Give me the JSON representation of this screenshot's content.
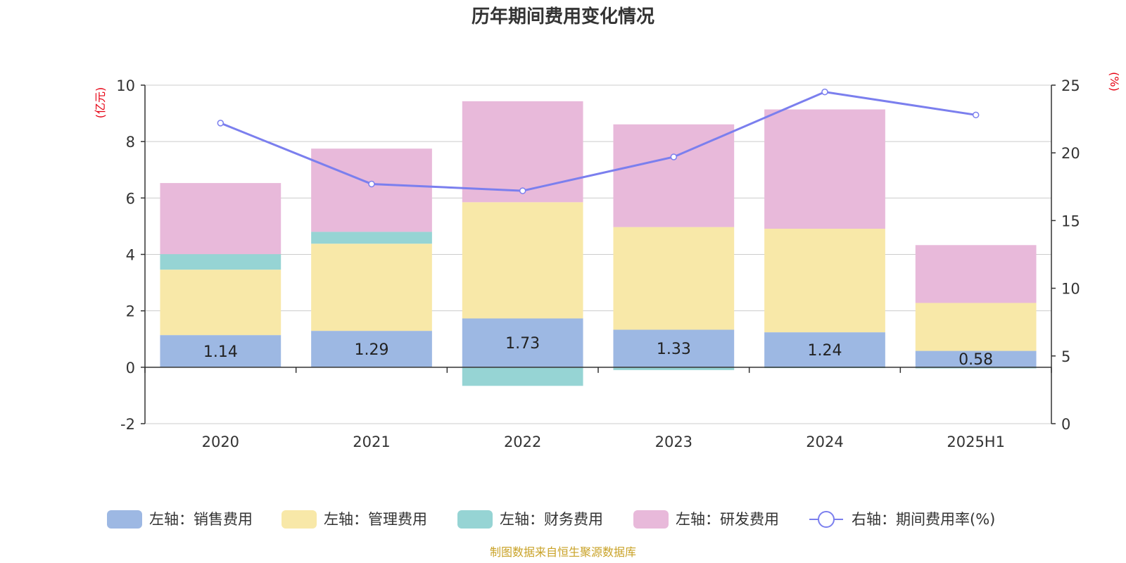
{
  "chart_data": {
    "type": "bar",
    "stacked": true,
    "title": "历年期间费用变化情况",
    "categories": [
      "2020",
      "2021",
      "2022",
      "2023",
      "2024",
      "2025H1"
    ],
    "left_axis": {
      "unit": "(亿元)",
      "ylim": [
        -2,
        10
      ],
      "ticks": [
        -2,
        0,
        2,
        4,
        6,
        8,
        10
      ]
    },
    "right_axis": {
      "unit": "(%)",
      "ylim": [
        0,
        25
      ],
      "ticks": [
        0,
        5,
        10,
        15,
        20,
        25
      ]
    },
    "grid": true,
    "legend_position": "bottom",
    "series": [
      {
        "name": "左轴：销售费用",
        "axis": "left",
        "color": "#9db8e3",
        "values": [
          1.14,
          1.29,
          1.73,
          1.33,
          1.24,
          0.58
        ],
        "labels_shown": true
      },
      {
        "name": "左轴：管理费用",
        "axis": "left",
        "color": "#f8e8a8",
        "values": [
          2.32,
          3.09,
          4.12,
          3.64,
          3.67,
          1.7
        ]
      },
      {
        "name": "左轴：财务费用",
        "axis": "left",
        "color": "#96d4d4",
        "values": [
          0.55,
          0.42,
          -0.66,
          -0.1,
          -0.03,
          -0.04
        ]
      },
      {
        "name": "左轴：研发费用",
        "axis": "left",
        "color": "#e8b9da",
        "values": [
          2.52,
          2.95,
          3.58,
          3.64,
          4.23,
          2.05
        ]
      },
      {
        "name": "右轴：期间费用率(%)",
        "axis": "right",
        "type": "line",
        "color": "#7b7fee",
        "values": [
          22.2,
          17.7,
          17.2,
          19.7,
          24.5,
          22.8
        ]
      }
    ]
  },
  "source_note": "制图数据来自恒生聚源数据库"
}
